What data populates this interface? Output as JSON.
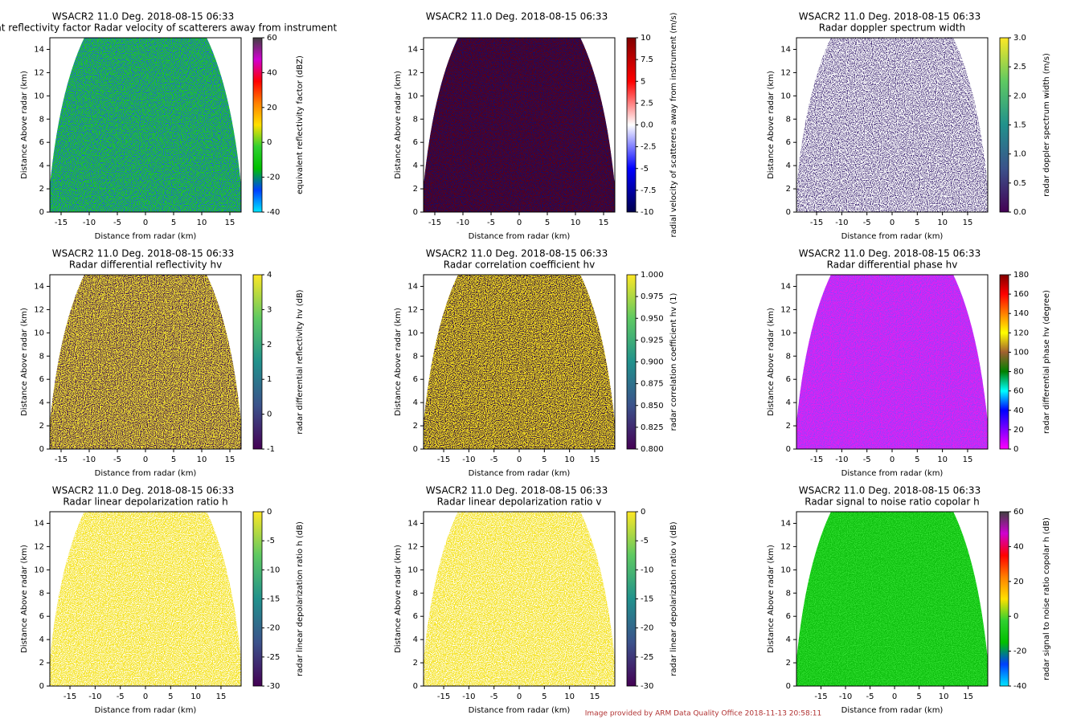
{
  "chart_data": [
    {
      "type": "radar_image",
      "title": "WSACR2 11.0 Deg. 2018-08-15 06:33",
      "subtitle": "Equivalent reflectivity factor  Radar velocity of scatterers away from instrument",
      "xlabel": "Distance from radar (km)",
      "ylabel": "Distance Above radar  (km)",
      "xlim": [
        -17,
        17
      ],
      "xticks": [
        -15,
        -10,
        -5,
        0,
        5,
        10,
        15
      ],
      "ylim": [
        0,
        15
      ],
      "yticks": [
        0,
        2,
        4,
        6,
        8,
        10,
        12,
        14
      ],
      "image_colors": [
        "#1ecb1e",
        "#2060e0"
      ],
      "colorbar": {
        "label": "equivalent reflectivity factor (dBZ)",
        "lim": [
          -40,
          60
        ],
        "ticks": [
          -40,
          -20,
          0,
          20,
          40,
          60
        ],
        "colormap": [
          "#00e5ff",
          "#0040ff",
          "#00c000",
          "#30d030",
          "#ffe000",
          "#ff8000",
          "#ff0000",
          "#d000d0",
          "#404040"
        ]
      }
    },
    {
      "type": "radar_image",
      "title": "WSACR2 11.0 Deg. 2018-08-15 06:33",
      "subtitle": "",
      "xlabel": "Distance from radar (km)",
      "ylabel": "Distance Above radar  (km)",
      "xlim": [
        -17,
        17
      ],
      "xticks": [
        -15,
        -10,
        -5,
        0,
        5,
        10,
        15
      ],
      "ylim": [
        0,
        15
      ],
      "yticks": [
        0,
        2,
        4,
        6,
        8,
        10,
        12,
        14
      ],
      "image_colors": [
        "#5a0018",
        "#101070"
      ],
      "colorbar": {
        "label": "radial velocity of scatterers away from instrument (m/s)",
        "lim": [
          -10,
          10
        ],
        "ticks": [
          -10,
          -7.5,
          -5,
          -2.5,
          {
            "value": 0,
            "label": "0.0"
          },
          2.5,
          5,
          7.5,
          10
        ],
        "colormap": [
          "#00004c",
          "#0000ff",
          "#ffffff",
          "#ff0000",
          "#800000"
        ]
      }
    },
    {
      "type": "radar_image",
      "title": "WSACR2 11.0 Deg. 2018-08-15 06:33",
      "subtitle": "Radar doppler spectrum width",
      "xlabel": "Distance from radar (km)",
      "ylabel": "Distance Above radar  (km)",
      "xlim": [
        -19,
        19
      ],
      "xticks": [
        -15,
        -10,
        -5,
        0,
        5,
        10,
        15
      ],
      "ylim": [
        0,
        15
      ],
      "yticks": [
        0,
        2,
        4,
        6,
        8,
        10,
        12,
        14
      ],
      "image_colors": [
        "#ffffff",
        "#46307a"
      ],
      "colorbar": {
        "label": "radar doppler spectrum width (m/s)",
        "lim": [
          0,
          3
        ],
        "ticks": [
          {
            "value": 0,
            "label": "0.0"
          },
          0.5,
          {
            "value": 1,
            "label": "1.0"
          },
          1.5,
          {
            "value": 2,
            "label": "2.0"
          },
          2.5,
          {
            "value": 3,
            "label": "3.0"
          }
        ],
        "colormap": [
          "#440154",
          "#3b528b",
          "#21918c",
          "#5ec962",
          "#fde725"
        ]
      }
    },
    {
      "type": "radar_image",
      "title": "WSACR2 11.0 Deg. 2018-08-15 06:33",
      "subtitle": "Radar differential reflectivity hv",
      "xlabel": "Distance from radar (km)",
      "ylabel": "Distance Above radar  (km)",
      "xlim": [
        -17,
        17
      ],
      "xticks": [
        -15,
        -10,
        -5,
        0,
        5,
        10,
        15
      ],
      "ylim": [
        0,
        15
      ],
      "yticks": [
        0,
        2,
        4,
        6,
        8,
        10,
        12,
        14
      ],
      "image_colors": [
        "#f0e030",
        "#3a1050"
      ],
      "colorbar": {
        "label": "radar differential reflectivity hv (dB)",
        "lim": [
          -1,
          4
        ],
        "ticks": [
          -1,
          0,
          1,
          2,
          3,
          4
        ],
        "colormap": [
          "#440154",
          "#3b528b",
          "#21918c",
          "#5ec962",
          "#fde725"
        ]
      }
    },
    {
      "type": "radar_image",
      "title": "WSACR2 11.0 Deg. 2018-08-15 06:33",
      "subtitle": "Radar correlation coefficient hv",
      "xlabel": "Distance from radar (km)",
      "ylabel": "Distance Above radar  (km)",
      "xlim": [
        -19,
        19
      ],
      "xticks": [
        -15,
        -10,
        -5,
        0,
        5,
        10,
        15
      ],
      "ylim": [
        0,
        15
      ],
      "yticks": [
        0,
        2,
        4,
        6,
        8,
        10,
        12,
        14
      ],
      "image_colors": [
        "#f5e020",
        "#2a0840"
      ],
      "colorbar": {
        "label": "radar correlation coefficient hv (1)",
        "lim": [
          0.8,
          1.0
        ],
        "ticks": [
          {
            "value": 0.8,
            "label": "0.800"
          },
          0.825,
          {
            "value": 0.85,
            "label": "0.850"
          },
          0.875,
          {
            "value": 0.9,
            "label": "0.900"
          },
          0.925,
          {
            "value": 0.95,
            "label": "0.950"
          },
          0.975,
          {
            "value": 1,
            "label": "1.000"
          }
        ],
        "colormap": [
          "#440154",
          "#3b528b",
          "#21918c",
          "#5ec962",
          "#fde725"
        ]
      }
    },
    {
      "type": "radar_image",
      "title": "WSACR2 11.0 Deg. 2018-08-15 06:33",
      "subtitle": "Radar differential phase hv",
      "xlabel": "Distance from radar (km)",
      "ylabel": "Distance Above radar  (km)",
      "xlim": [
        -19,
        19
      ],
      "xticks": [
        -15,
        -10,
        -5,
        0,
        5,
        10,
        15
      ],
      "ylim": [
        0,
        15
      ],
      "yticks": [
        0,
        2,
        4,
        6,
        8,
        10,
        12,
        14
      ],
      "image_colors": [
        "#e020f0",
        "#9040ff"
      ],
      "colorbar": {
        "label": "radar differential phase hv (degree)",
        "lim": [
          0,
          180
        ],
        "ticks": [
          0,
          20,
          40,
          60,
          80,
          100,
          120,
          140,
          160,
          180
        ],
        "colormap": [
          "#ff00ff",
          "#8000ff",
          "#0000ff",
          "#00ffff",
          "#008000",
          "#a06030",
          "#ffff00",
          "#ff8000",
          "#ff0000",
          "#800000"
        ]
      }
    },
    {
      "type": "radar_image",
      "title": "WSACR2 11.0 Deg. 2018-08-15 06:33",
      "subtitle": "Radar linear depolarization ratio h",
      "xlabel": "Distance from radar (km)",
      "ylabel": "Distance Above radar  (km)",
      "xlim": [
        -19,
        19
      ],
      "xticks": [
        -15,
        -10,
        -5,
        0,
        5,
        10,
        15
      ],
      "ylim": [
        0,
        15
      ],
      "yticks": [
        0,
        2,
        4,
        6,
        8,
        10,
        12,
        14
      ],
      "image_colors": [
        "#f5e326",
        "#ffffff"
      ],
      "colorbar": {
        "label": "radar linear depolarization ratio h (dB)",
        "lim": [
          -30,
          0
        ],
        "ticks": [
          -30,
          -25,
          -20,
          -15,
          -10,
          -5,
          0
        ],
        "colormap": [
          "#440154",
          "#3b528b",
          "#21918c",
          "#5ec962",
          "#fde725"
        ]
      }
    },
    {
      "type": "radar_image",
      "title": "WSACR2 11.0 Deg. 2018-08-15 06:33",
      "subtitle": "Radar linear depolarization ratio v",
      "xlabel": "Distance from radar (km)",
      "ylabel": "Distance Above radar  (km)",
      "xlim": [
        -19,
        19
      ],
      "xticks": [
        -15,
        -10,
        -5,
        0,
        5,
        10,
        15
      ],
      "ylim": [
        0,
        15
      ],
      "yticks": [
        0,
        2,
        4,
        6,
        8,
        10,
        12,
        14
      ],
      "image_colors": [
        "#f5e326",
        "#ffffff"
      ],
      "colorbar": {
        "label": "radar linear depolarization ratio v (dB)",
        "lim": [
          -30,
          0
        ],
        "ticks": [
          -30,
          -25,
          -20,
          -15,
          -10,
          -5,
          0
        ],
        "colormap": [
          "#440154",
          "#3b528b",
          "#21918c",
          "#5ec962",
          "#fde725"
        ]
      }
    },
    {
      "type": "radar_image",
      "title": "WSACR2 11.0 Deg. 2018-08-15 06:33",
      "subtitle": "Radar signal to noise ratio copolar h",
      "xlabel": "Distance from radar (km)",
      "ylabel": "Distance Above radar  (km)",
      "xlim": [
        -20,
        19
      ],
      "xticks": [
        -15,
        -10,
        -5,
        0,
        5,
        10,
        15
      ],
      "ylim": [
        0,
        15
      ],
      "yticks": [
        0,
        2,
        4,
        6,
        8,
        10,
        12,
        14
      ],
      "image_colors": [
        "#10c010",
        "#30e030"
      ],
      "colorbar": {
        "label": "radar signal to noise ratio copolar h (dB)",
        "lim": [
          -40,
          60
        ],
        "ticks": [
          -40,
          -20,
          0,
          20,
          40,
          60
        ],
        "colormap": [
          "#00e5ff",
          "#0040ff",
          "#00c000",
          "#30d030",
          "#ffe000",
          "#ff8000",
          "#ff0000",
          "#d000d0",
          "#404040"
        ]
      }
    }
  ],
  "footer": "Image provided by ARM Data Quality Office 2018-11-13 20:58:11"
}
